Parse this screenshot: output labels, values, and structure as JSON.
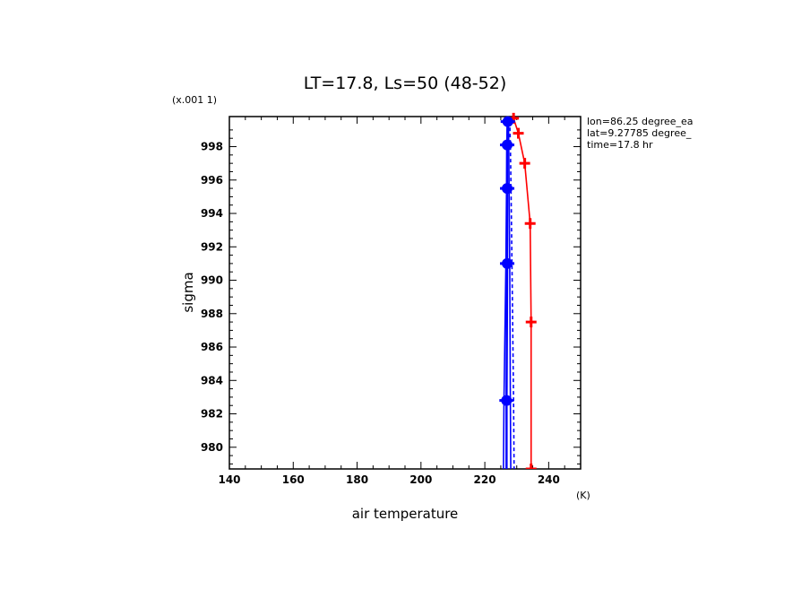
{
  "chart_data": {
    "type": "line",
    "title": "LT=17.8, Ls=50 (48-52)",
    "xlabel": "air temperature",
    "xunits": "(K)",
    "ylabel": "sigma",
    "yscale_note": "(x.001 1)",
    "xlim": [
      140,
      250
    ],
    "ylim": [
      999.8,
      978.7
    ],
    "x_ticks": [
      140,
      160,
      180,
      200,
      220,
      240
    ],
    "y_ticks": [
      980,
      982,
      984,
      986,
      988,
      990,
      992,
      994,
      996,
      998
    ],
    "info": [
      "lon=86.25 degree_ea",
      "lat=9.27785 degree_",
      "time=17.8 hr"
    ],
    "series": [
      {
        "color": "#ff0000",
        "style": "solid",
        "marker": "plus",
        "points": [
          [
            234.5,
            978.7
          ],
          [
            234.5,
            987.5
          ],
          [
            234.2,
            993.4
          ],
          [
            232.5,
            997.0
          ],
          [
            230.5,
            998.8
          ],
          [
            229.0,
            999.7
          ]
        ]
      },
      {
        "color": "#0000ff",
        "style": "solid",
        "marker": "circle",
        "points": [
          [
            226.8,
            973.0
          ],
          [
            226.8,
            982.8
          ],
          [
            227.0,
            991.0
          ],
          [
            227.0,
            995.5
          ],
          [
            227.0,
            998.1
          ],
          [
            227.2,
            999.5
          ]
        ]
      },
      {
        "color": "#0000ff",
        "style": "solid",
        "marker": "none",
        "points": [
          [
            225.6,
            973.0
          ],
          [
            226.0,
            982.8
          ],
          [
            226.6,
            991.0
          ],
          [
            226.8,
            995.5
          ],
          [
            226.9,
            998.1
          ],
          [
            227.0,
            999.5
          ]
        ]
      },
      {
        "color": "#0000ff",
        "style": "solid",
        "marker": "none",
        "points": [
          [
            228.3,
            973.0
          ],
          [
            228.0,
            982.8
          ],
          [
            227.8,
            991.0
          ],
          [
            227.6,
            995.5
          ],
          [
            227.5,
            998.1
          ],
          [
            227.4,
            999.5
          ]
        ]
      },
      {
        "color": "#0000ff",
        "style": "dashed",
        "marker": "none",
        "points": [
          [
            229.4,
            973.0
          ],
          [
            229.0,
            982.8
          ],
          [
            228.5,
            991.0
          ],
          [
            228.2,
            995.5
          ],
          [
            228.0,
            998.1
          ],
          [
            227.8,
            999.5
          ]
        ]
      }
    ]
  }
}
